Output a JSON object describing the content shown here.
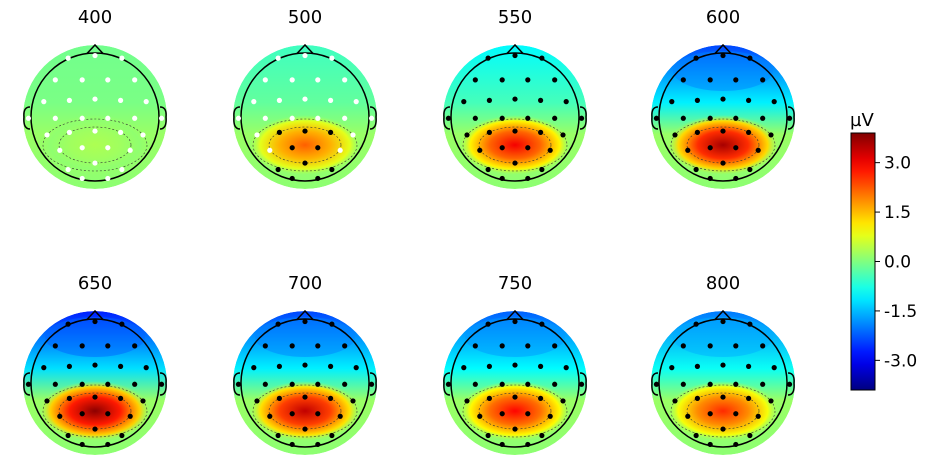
{
  "maps": [
    {
      "label": "400",
      "amp": 0.35,
      "front": -0.1,
      "dots": "white"
    },
    {
      "label": "500",
      "amp": 2.2,
      "front": -0.5,
      "dots": "mixed"
    },
    {
      "label": "550",
      "amp": 3.0,
      "front": -1.0,
      "dots": "black"
    },
    {
      "label": "600",
      "amp": 3.6,
      "front": -2.4,
      "dots": "black"
    },
    {
      "label": "650",
      "amp": 3.8,
      "front": -2.7,
      "dots": "black"
    },
    {
      "label": "700",
      "amp": 3.4,
      "front": -2.4,
      "dots": "black"
    },
    {
      "label": "750",
      "amp": 2.9,
      "front": -2.2,
      "dots": "black"
    },
    {
      "label": "800",
      "amp": 2.6,
      "front": -2.0,
      "dots": "black"
    }
  ],
  "colorbar": {
    "unit": "µV",
    "ticks": [
      "3.0",
      "1.5",
      "0.0",
      "-1.5",
      "-3.0"
    ],
    "tick_values": [
      3.0,
      1.5,
      0.0,
      -1.5,
      -3.0
    ],
    "range": [
      -3.9,
      3.9
    ],
    "colormap": "jet"
  }
}
